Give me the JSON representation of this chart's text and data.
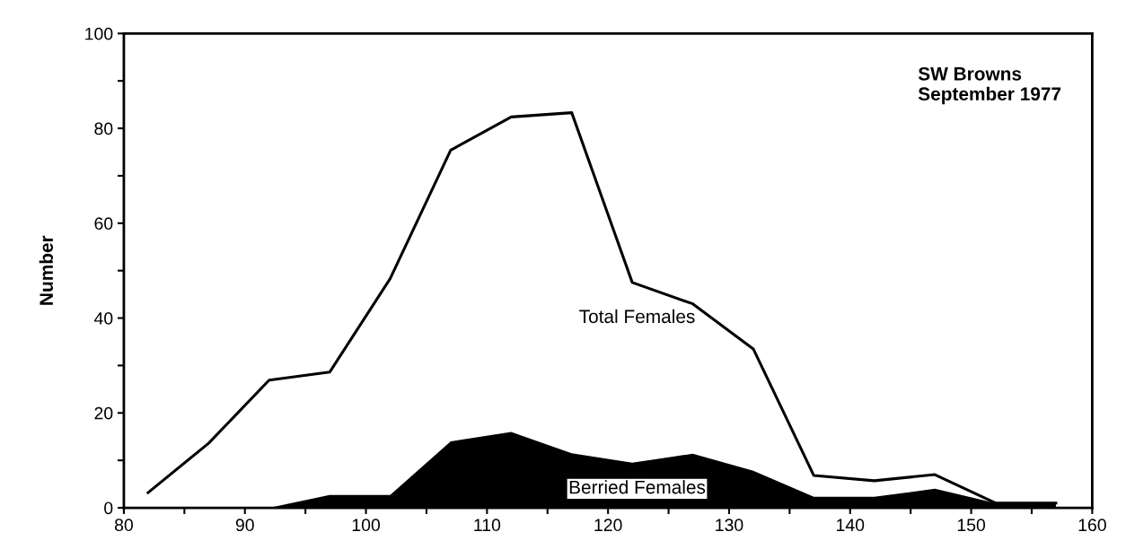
{
  "chart_data": {
    "type": "line",
    "ylabel": "Number",
    "annotations": [
      "SW Browns\nSeptember 1977"
    ],
    "x": [
      82,
      87,
      92,
      97,
      102,
      107,
      112,
      117,
      122,
      127,
      132,
      137,
      142,
      147,
      152,
      157
    ],
    "series": [
      {
        "name": "Total Females",
        "color": "#000000",
        "values": [
          3.2,
          13.6,
          26.9,
          28.6,
          48.3,
          75.4,
          82.4,
          83.3,
          47.5,
          43,
          33.5,
          6.8,
          5.7,
          7,
          1,
          1
        ]
      },
      {
        "name": "Berried Females",
        "type": "area",
        "color": "#000000",
        "values": [
          0,
          0,
          0,
          2.7,
          2.7,
          14,
          16,
          11.5,
          9.5,
          11.4,
          7.8,
          2.3,
          2.3,
          4,
          1,
          1
        ]
      }
    ],
    "xlim": [
      80,
      160
    ],
    "ylim": [
      0,
      100
    ],
    "xticks": [
      80,
      {
        "value": 85,
        "label": null
      },
      90,
      {
        "value": 95,
        "label": null
      },
      100,
      {
        "value": 105,
        "label": null
      },
      110,
      {
        "value": 115,
        "label": null
      },
      120,
      {
        "value": 125,
        "label": null
      },
      130,
      {
        "value": 135,
        "label": null
      },
      140,
      {
        "value": 145,
        "label": null
      },
      150,
      {
        "value": 155,
        "label": null
      },
      160
    ],
    "yticks": [
      0,
      {
        "value": 10,
        "label": null
      },
      20,
      {
        "value": 30,
        "label": null
      },
      40,
      {
        "value": 50,
        "label": null
      },
      60,
      {
        "value": 70,
        "label": null
      },
      80,
      {
        "value": 90,
        "label": null
      },
      100
    ],
    "grid": false,
    "legend": false,
    "marker": "none",
    "line_style": "solid"
  }
}
